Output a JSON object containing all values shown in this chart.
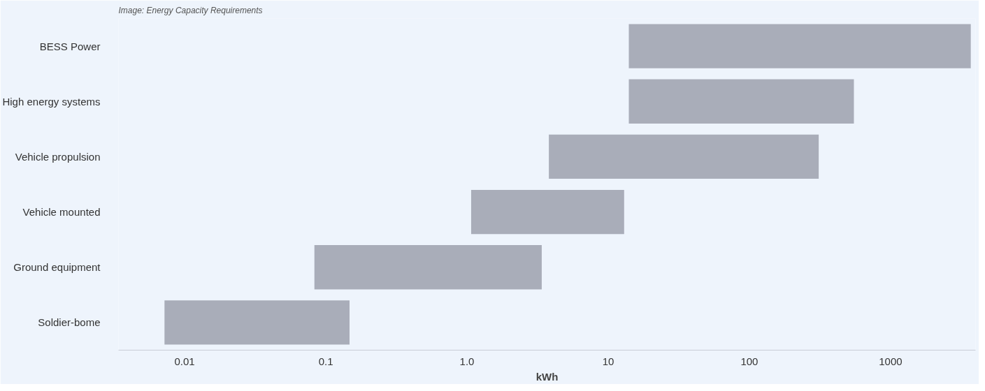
{
  "chart_data": {
    "type": "bar",
    "orientation": "horizontal",
    "title": "Image: Energy Capacity Requirements",
    "xlabel": "kWh",
    "categories": [
      "BESS Power",
      "High energy systems",
      "Vehicle propulsion",
      "Vehicle mounted",
      "Ground equipment",
      "Soldier-bome"
    ],
    "base": [
      14,
      14,
      3.8,
      1.07,
      0.083,
      0.0072
    ],
    "values": [
      3686,
      536,
      306,
      11.9,
      3.3,
      0.14
    ],
    "color": "#a9adb9",
    "log": "x",
    "xlim": [
      0.0034,
      4000
    ],
    "xticks": [
      0.01,
      0.1,
      {
        "value": 1,
        "label": "1.0"
      },
      10,
      100,
      1000
    ],
    "grid": false
  }
}
